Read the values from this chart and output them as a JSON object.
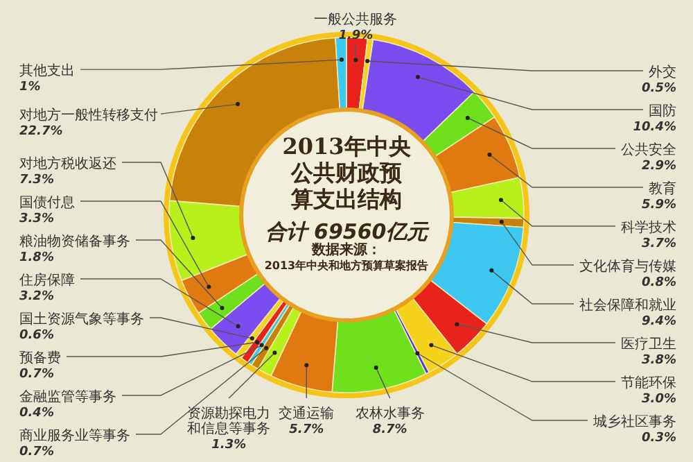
{
  "chart_data": {
    "type": "donut",
    "title": "2013年中央公共财政预算支出结构",
    "subtitle": "合计 69560亿元",
    "annotations": [
      "数据来源：",
      "2013年中央和地方预算草案报告"
    ],
    "categories": [
      "一般公共服务",
      "外交",
      "国防",
      "公共安全",
      "教育",
      "科学技术",
      "文化体育与传媒",
      "社会保障和就业",
      "医疗卫生",
      "节能环保",
      "城乡社区事务",
      "农林水事务",
      "交通运输",
      "资源勘探电力和信息等事务",
      "商业服务业等事务",
      "金融监管等事务",
      "预备费",
      "国土资源气象等事务",
      "住房保障",
      "粮油物资储备事务",
      "国债付息",
      "对地方税收返还",
      "对地方一般性转移支付",
      "其他支出"
    ],
    "values": [
      1.9,
      0.5,
      10.4,
      2.9,
      5.9,
      3.7,
      0.8,
      9.4,
      3.8,
      3.0,
      0.3,
      8.7,
      5.7,
      1.3,
      0.7,
      0.4,
      0.7,
      0.6,
      3.2,
      1.8,
      3.3,
      7.3,
      22.7,
      1
    ],
    "value_labels": [
      "1.9%",
      "0.5%",
      "10.4%",
      "2.9%",
      "5.9%",
      "3.7%",
      "0.8%",
      "9.4%",
      "3.8%",
      "3.0%",
      "0.3%",
      "8.7%",
      "5.7%",
      "1.3%",
      "0.7%",
      "0.4%",
      "0.7%",
      "0.6%",
      "3.2%",
      "1.8%",
      "3.3%",
      "7.3%",
      "22.7%",
      "1%"
    ],
    "colors": [
      "#e8231c",
      "#f5d21c",
      "#7b4cf0",
      "#6ee01c",
      "#e07a10",
      "#b8f01c",
      "#c8820a",
      "#3cc8f0",
      "#e8231c",
      "#f5d21c",
      "#4a3cd8",
      "#6ee01c",
      "#e07a10",
      "#b8f01c",
      "#c8820a",
      "#3cc8f0",
      "#e8231c",
      "#f5d21c",
      "#7b4cf0",
      "#6ee01c",
      "#e07a10",
      "#b8f01c",
      "#c8820a",
      "#3cc8f0"
    ]
  }
}
